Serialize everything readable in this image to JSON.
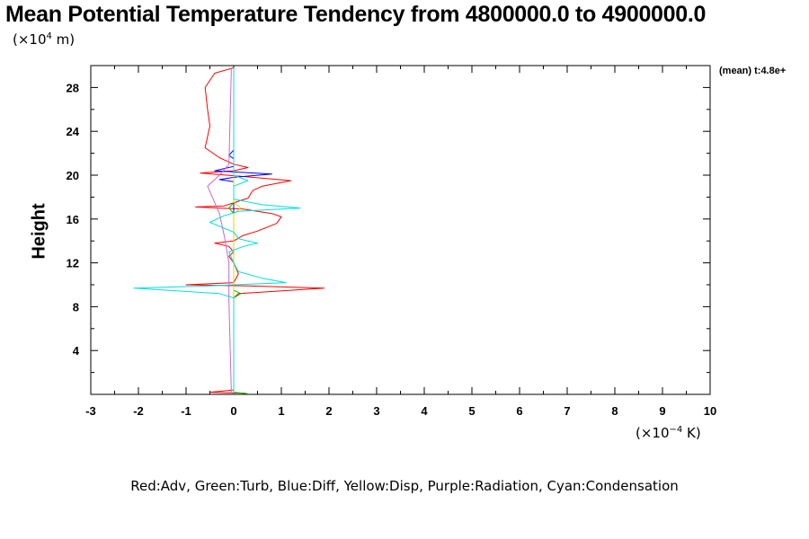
{
  "chart_data": {
    "type": "line",
    "title": "Mean Potential Temperature Tendency from 4800000.0 to 4900000.0",
    "ylabel": "Height",
    "y_scale_prefix": "(×10",
    "y_scale_exp": "4",
    "y_scale_suffix": " m)",
    "x_scale_prefix": "(×10",
    "x_scale_exp": "−4",
    "x_scale_suffix": " K)",
    "annotation": "(mean) t:4.8e+",
    "legend_text": "Red:Adv, Green:Turb, Blue:Diff, Yellow:Disp, Purple:Radiation, Cyan:Condensation",
    "xlim": [
      -3,
      10
    ],
    "ylim": [
      0,
      30
    ],
    "x_ticks": [
      -3,
      -2,
      -1,
      0,
      1,
      2,
      3,
      4,
      5,
      6,
      7,
      8,
      9,
      10
    ],
    "y_ticks": [
      4,
      8,
      12,
      16,
      20,
      24,
      28
    ],
    "grid": false,
    "series": [
      {
        "name": "Adv",
        "color": "#ff0000",
        "points": [
          [
            0.25,
            0.1
          ],
          [
            -0.5,
            0.2
          ],
          [
            0.0,
            0.4
          ],
          [
            0.0,
            8.8
          ],
          [
            0.1,
            9.2
          ],
          [
            0.5,
            9.3
          ],
          [
            1.9,
            9.7
          ],
          [
            0.3,
            9.9
          ],
          [
            -1.0,
            10.0
          ],
          [
            0.0,
            10.2
          ],
          [
            0.1,
            11.0
          ],
          [
            0.0,
            12.0
          ],
          [
            -0.1,
            12.6
          ],
          [
            0.0,
            13.0
          ],
          [
            -0.1,
            13.5
          ],
          [
            -0.4,
            13.8
          ],
          [
            0.0,
            14.0
          ],
          [
            0.2,
            14.5
          ],
          [
            0.5,
            14.9
          ],
          [
            0.9,
            15.6
          ],
          [
            1.0,
            16.2
          ],
          [
            0.8,
            16.5
          ],
          [
            0.2,
            16.9
          ],
          [
            -0.8,
            17.1
          ],
          [
            -0.2,
            17.2
          ],
          [
            0.3,
            17.9
          ],
          [
            0.4,
            18.6
          ],
          [
            0.6,
            19.0
          ],
          [
            1.2,
            19.5
          ],
          [
            0.4,
            19.8
          ],
          [
            -0.7,
            20.2
          ],
          [
            0.0,
            20.4
          ],
          [
            0.3,
            20.7
          ],
          [
            0.0,
            21.0
          ],
          [
            -0.3,
            21.6
          ],
          [
            -0.6,
            22.5
          ],
          [
            -0.5,
            24.5
          ],
          [
            -0.55,
            26.0
          ],
          [
            -0.6,
            28.0
          ],
          [
            -0.4,
            29.3
          ],
          [
            0.0,
            29.8
          ]
        ]
      },
      {
        "name": "Turb",
        "color": "#00c000",
        "points": [
          [
            0.3,
            0.05
          ],
          [
            0.0,
            0.2
          ],
          [
            0.0,
            8.8
          ],
          [
            0.15,
            9.2
          ],
          [
            0.0,
            9.5
          ],
          [
            0.0,
            16.5
          ],
          [
            -0.1,
            17.0
          ],
          [
            0.0,
            17.5
          ],
          [
            0.0,
            29.8
          ]
        ]
      },
      {
        "name": "Diff",
        "color": "#0000ff",
        "points": [
          [
            0.0,
            0.1
          ],
          [
            0.0,
            19.4
          ],
          [
            -0.3,
            19.6
          ],
          [
            0.0,
            19.8
          ],
          [
            0.8,
            20.1
          ],
          [
            -0.4,
            20.4
          ],
          [
            0.0,
            20.8
          ],
          [
            0.0,
            21.5
          ],
          [
            -0.1,
            21.8
          ],
          [
            0.0,
            22.3
          ],
          [
            0.0,
            29.8
          ]
        ]
      },
      {
        "name": "Disp",
        "color": "#d8d800",
        "points": [
          [
            0.0,
            0.1
          ],
          [
            0.0,
            16.5
          ],
          [
            0.15,
            17.0
          ],
          [
            0.0,
            17.5
          ],
          [
            0.0,
            29.8
          ]
        ]
      },
      {
        "name": "Radiation",
        "color": "#cc66cc",
        "points": [
          [
            -0.05,
            0.1
          ],
          [
            -0.1,
            8.5
          ],
          [
            -0.1,
            12.0
          ],
          [
            -0.2,
            14.5
          ],
          [
            -0.3,
            16.5
          ],
          [
            -0.55,
            19.0
          ],
          [
            -0.3,
            20.0
          ],
          [
            -0.1,
            21.0
          ],
          [
            -0.05,
            29.8
          ]
        ]
      },
      {
        "name": "Condensation",
        "color": "#00e0e0",
        "points": [
          [
            0.0,
            0.05
          ],
          [
            0.0,
            8.8
          ],
          [
            -0.3,
            9.2
          ],
          [
            -2.1,
            9.7
          ],
          [
            -0.5,
            9.9
          ],
          [
            0.0,
            10.0
          ],
          [
            1.1,
            10.2
          ],
          [
            0.6,
            10.6
          ],
          [
            0.1,
            11.2
          ],
          [
            0.0,
            12.0
          ],
          [
            -0.1,
            13.0
          ],
          [
            0.2,
            13.5
          ],
          [
            0.5,
            13.8
          ],
          [
            0.1,
            14.2
          ],
          [
            0.0,
            14.8
          ],
          [
            -0.5,
            15.7
          ],
          [
            -0.2,
            16.3
          ],
          [
            0.1,
            16.7
          ],
          [
            1.4,
            17.0
          ],
          [
            0.6,
            17.3
          ],
          [
            0.0,
            17.8
          ],
          [
            0.0,
            19.0
          ],
          [
            0.3,
            19.5
          ],
          [
            0.0,
            20.0
          ],
          [
            0.0,
            29.8
          ]
        ]
      }
    ]
  }
}
